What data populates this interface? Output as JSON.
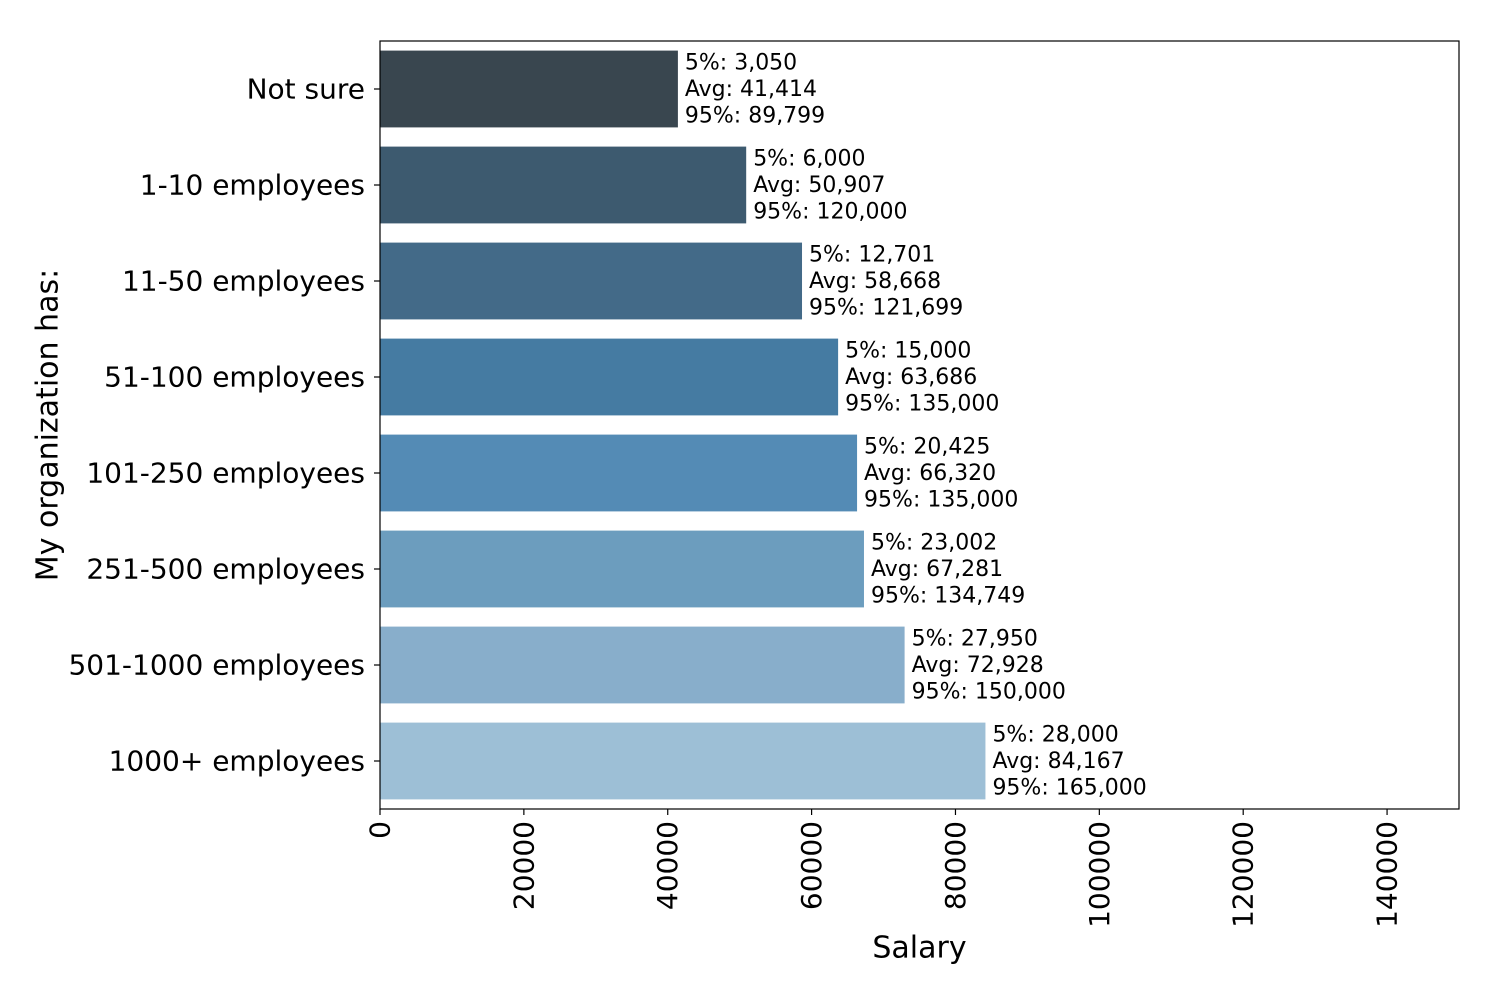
{
  "chart_data": {
    "type": "bar",
    "orientation": "horizontal",
    "title": "",
    "xlabel": "Salary",
    "ylabel": "My organization has:",
    "xlim": [
      0,
      150000
    ],
    "x_ticks": [
      0,
      20000,
      40000,
      60000,
      80000,
      100000,
      120000,
      140000
    ],
    "x_tick_labels": [
      "0",
      "20000",
      "40000",
      "60000",
      "80000",
      "100000",
      "120000",
      "140000"
    ],
    "grid": false,
    "legend": "none",
    "categories": [
      "Not sure",
      "1-10 employees",
      "11-50 employees",
      "51-100 employees",
      "101-250 employees",
      "251-500 employees",
      "501-1000 employees",
      "1000+ employees"
    ],
    "values": [
      41414,
      50907,
      58668,
      63686,
      66320,
      67281,
      72928,
      84167
    ],
    "percentile_5": [
      3050,
      6000,
      12701,
      15000,
      20425,
      23002,
      27950,
      28000
    ],
    "percentile_95": [
      89799,
      120000,
      121699,
      135000,
      135000,
      134749,
      150000,
      165000
    ],
    "annotations": [
      [
        "5%: 3,050",
        "Avg: 41,414",
        "95%: 89,799"
      ],
      [
        "5%: 6,000",
        "Avg: 50,907",
        "95%: 120,000"
      ],
      [
        "5%: 12,701",
        "Avg: 58,668",
        "95%: 121,699"
      ],
      [
        "5%: 15,000",
        "Avg: 63,686",
        "95%: 135,000"
      ],
      [
        "5%: 20,425",
        "Avg: 66,320",
        "95%: 135,000"
      ],
      [
        "5%: 23,002",
        "Avg: 67,281",
        "95%: 134,749"
      ],
      [
        "5%: 27,950",
        "Avg: 72,928",
        "95%: 150,000"
      ],
      [
        "5%: 28,000",
        "Avg: 84,167",
        "95%: 165,000"
      ]
    ],
    "colors": [
      "#39464f",
      "#3d5a6f",
      "#436a88",
      "#457ba2",
      "#548bb5",
      "#6c9dbe",
      "#88aecb",
      "#9dbfd6"
    ],
    "axis_color": "#000000",
    "background": "#ffffff"
  }
}
